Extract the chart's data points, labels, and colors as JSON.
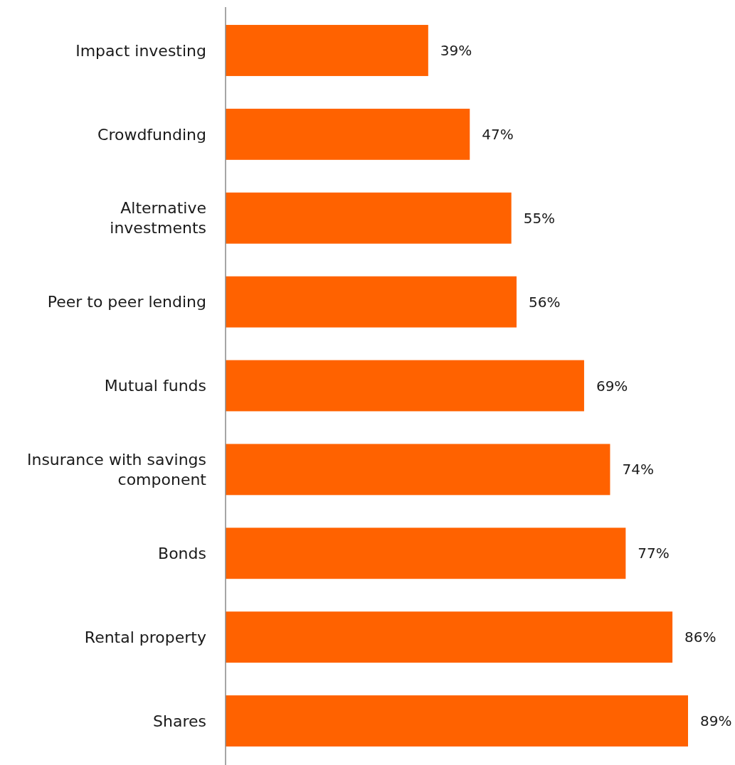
{
  "chart_data": {
    "type": "bar",
    "orientation": "horizontal",
    "categories": [
      "Impact investing",
      "Crowdfunding",
      "Alternative investments",
      "Peer to peer lending",
      "Mutual funds",
      "Insurance with savings component",
      "Bonds",
      "Rental property",
      "Shares"
    ],
    "values": [
      39,
      47,
      55,
      56,
      69,
      74,
      77,
      86,
      89
    ],
    "value_labels": [
      "39%",
      "47%",
      "55%",
      "56%",
      "69%",
      "74%",
      "77%",
      "86%",
      "89%"
    ],
    "color": "#ff6200"
  }
}
